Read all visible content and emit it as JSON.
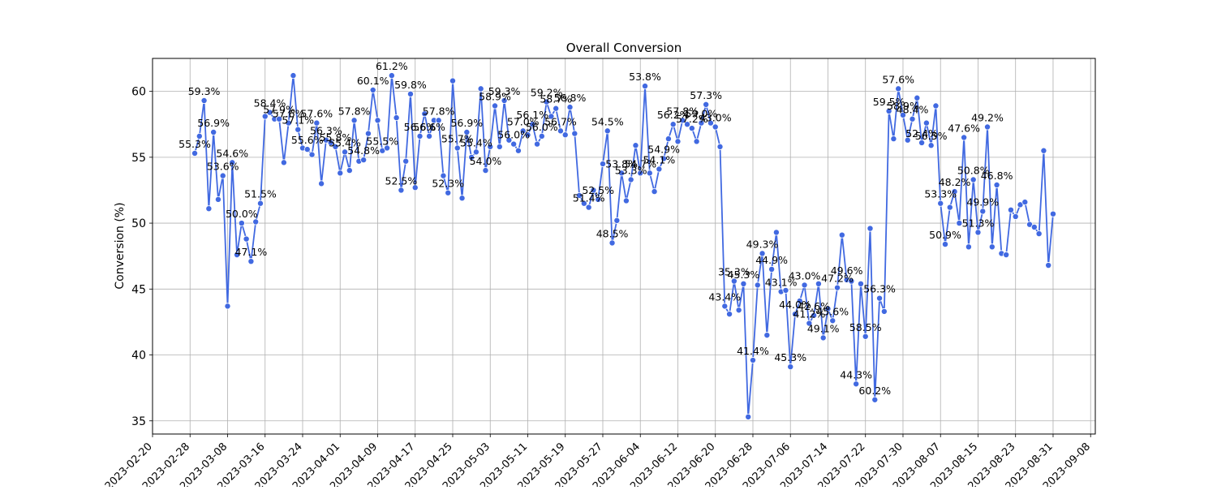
{
  "chart_data": {
    "type": "line",
    "title": "Overall Conversion",
    "xlabel": "",
    "ylabel": "Conversion (%)",
    "start_date": "2023-03-01",
    "x_ticks": [
      "2023-02-20",
      "2023-02-28",
      "2023-03-08",
      "2023-03-16",
      "2023-03-24",
      "2023-04-01",
      "2023-04-09",
      "2023-04-17",
      "2023-04-25",
      "2023-05-03",
      "2023-05-11",
      "2023-05-19",
      "2023-05-27",
      "2023-06-04",
      "2023-06-12",
      "2023-06-20",
      "2023-06-28",
      "2023-07-06",
      "2023-07-14",
      "2023-07-22",
      "2023-07-30",
      "2023-08-07",
      "2023-08-15",
      "2023-08-23",
      "2023-08-31",
      "2023-09-08"
    ],
    "y_ticks": [
      35,
      40,
      45,
      50,
      55,
      60
    ],
    "ylim": [
      34.0,
      62.5
    ],
    "grid": true,
    "series": [
      {
        "name": "",
        "color": "#4169e1",
        "values": [
          55.3,
          56.6,
          59.3,
          51.1,
          56.9,
          51.8,
          53.6,
          43.7,
          54.6,
          47.6,
          50.0,
          48.8,
          47.1,
          50.1,
          51.5,
          58.1,
          58.4,
          57.9,
          57.9,
          54.6,
          57.6,
          61.2,
          57.1,
          55.7,
          55.6,
          55.2,
          57.6,
          53.0,
          56.3,
          56.1,
          55.8,
          53.8,
          55.4,
          54.0,
          57.8,
          54.7,
          54.8,
          56.8,
          60.1,
          57.8,
          55.5,
          55.7,
          61.2,
          58.0,
          52.5,
          54.7,
          59.8,
          52.7,
          56.6,
          58.3,
          56.6,
          57.8,
          57.8,
          53.6,
          52.3,
          60.8,
          55.7,
          51.9,
          56.9,
          55.0,
          55.4,
          60.2,
          54.0,
          55.8,
          58.9,
          55.8,
          59.3,
          56.3,
          56.0,
          55.5,
          57.0,
          56.7,
          57.5,
          56.0,
          56.6,
          59.2,
          58.1,
          58.7,
          57.0,
          56.7,
          58.8,
          56.8,
          52.1,
          51.5,
          51.2,
          52.5,
          51.8,
          54.5,
          57.0,
          48.5,
          50.2,
          53.8,
          51.7,
          53.3,
          55.9,
          53.8,
          60.4,
          53.8,
          52.4,
          54.1,
          54.9,
          56.4,
          57.5,
          56.2,
          57.8,
          57.5,
          57.2,
          56.2,
          57.6,
          59.0,
          57.6,
          57.3,
          55.8,
          43.7,
          43.1,
          45.6,
          43.4,
          45.4,
          35.3,
          39.6,
          45.3,
          47.7,
          41.5,
          46.5,
          49.3,
          44.8,
          44.9,
          39.1,
          43.1,
          44.1,
          45.3,
          42.4,
          43.0,
          45.4,
          41.3,
          43.5,
          42.6,
          45.1,
          49.1,
          45.7,
          45.6,
          37.8,
          45.4,
          41.4,
          49.6,
          36.6,
          44.3,
          43.3,
          58.5,
          56.4,
          60.2,
          58.2,
          56.3,
          57.9,
          59.5,
          56.1,
          57.6,
          55.9,
          58.9,
          51.5,
          48.4,
          51.2,
          52.4,
          50.0,
          56.5,
          48.2,
          53.3,
          49.3,
          50.9,
          57.3,
          48.2,
          52.9,
          47.7,
          47.6,
          51.0,
          50.5,
          51.4,
          51.6,
          49.9,
          49.7,
          49.2,
          55.5,
          46.8,
          50.7
        ]
      }
    ],
    "annotations": [
      {
        "day": 0,
        "text": "55.3%"
      },
      {
        "day": 2,
        "text": "59.3%"
      },
      {
        "day": 4,
        "text": "56.9%"
      },
      {
        "day": 6,
        "text": "53.6%"
      },
      {
        "day": 8,
        "text": "54.6%"
      },
      {
        "day": 10,
        "text": "50.0%"
      },
      {
        "day": 12,
        "text": "47.1%"
      },
      {
        "day": 14,
        "text": "51.5%"
      },
      {
        "day": 16,
        "text": "58.4%"
      },
      {
        "day": 18,
        "text": "57.9%"
      },
      {
        "day": 20,
        "text": "57.6%"
      },
      {
        "day": 22,
        "text": "57.1%"
      },
      {
        "day": 24,
        "text": "55.6%"
      },
      {
        "day": 26,
        "text": "57.6%"
      },
      {
        "day": 28,
        "text": "56.3%"
      },
      {
        "day": 30,
        "text": "55.8%"
      },
      {
        "day": 32,
        "text": "55.4%"
      },
      {
        "day": 34,
        "text": "57.8%"
      },
      {
        "day": 36,
        "text": "54.8%"
      },
      {
        "day": 38,
        "text": "60.1%"
      },
      {
        "day": 40,
        "text": "55.5%"
      },
      {
        "day": 42,
        "text": "61.2%"
      },
      {
        "day": 44,
        "text": "52.5%"
      },
      {
        "day": 46,
        "text": "59.8%"
      },
      {
        "day": 48,
        "text": "56.6%"
      },
      {
        "day": 50,
        "text": "56.6%"
      },
      {
        "day": 52,
        "text": "57.8%"
      },
      {
        "day": 54,
        "text": "52.3%"
      },
      {
        "day": 56,
        "text": "55.7%"
      },
      {
        "day": 58,
        "text": "56.9%"
      },
      {
        "day": 60,
        "text": "55.4%"
      },
      {
        "day": 62,
        "text": "54.0%"
      },
      {
        "day": 64,
        "text": "58.9%"
      },
      {
        "day": 66,
        "text": "59.3%"
      },
      {
        "day": 68,
        "text": "56.0%"
      },
      {
        "day": 70,
        "text": "57.0%"
      },
      {
        "day": 72,
        "text": "56.1%"
      },
      {
        "day": 74,
        "text": "56.0%"
      },
      {
        "day": 75,
        "text": "59.2%"
      },
      {
        "day": 77,
        "text": "58.7%"
      },
      {
        "day": 78,
        "text": "56.7%"
      },
      {
        "day": 80,
        "text": "56.8%"
      },
      {
        "day": 84,
        "text": "51.4%"
      },
      {
        "day": 86,
        "text": "52.5%"
      },
      {
        "day": 88,
        "text": "54.5%"
      },
      {
        "day": 89,
        "text": "48.5%"
      },
      {
        "day": 91,
        "text": "53.8%"
      },
      {
        "day": 93,
        "text": "53.3%"
      },
      {
        "day": 95,
        "text": "54.7%"
      },
      {
        "day": 96,
        "text": "53.8%"
      },
      {
        "day": 99,
        "text": "54.1%"
      },
      {
        "day": 100,
        "text": "54.9%"
      },
      {
        "day": 102,
        "text": "56.2%"
      },
      {
        "day": 104,
        "text": "57.8%"
      },
      {
        "day": 106,
        "text": "57.2%"
      },
      {
        "day": 108,
        "text": "59.0%"
      },
      {
        "day": 109,
        "text": "57.3%"
      },
      {
        "day": 111,
        "text": "43.0%"
      },
      {
        "day": 113,
        "text": "43.4%"
      },
      {
        "day": 115,
        "text": "35.3%"
      },
      {
        "day": 117,
        "text": "45.3%"
      },
      {
        "day": 119,
        "text": "41.4%"
      },
      {
        "day": 121,
        "text": "49.3%"
      },
      {
        "day": 123,
        "text": "44.9%"
      },
      {
        "day": 125,
        "text": "43.1%"
      },
      {
        "day": 127,
        "text": "45.3%"
      },
      {
        "day": 128,
        "text": "44.0%"
      },
      {
        "day": 130,
        "text": "43.0%"
      },
      {
        "day": 131,
        "text": "41.2%"
      },
      {
        "day": 132,
        "text": "42.6%"
      },
      {
        "day": 134,
        "text": "49.1%"
      },
      {
        "day": 136,
        "text": "45.6%"
      },
      {
        "day": 137,
        "text": "47.2%"
      },
      {
        "day": 139,
        "text": "49.6%"
      },
      {
        "day": 141,
        "text": "44.3%"
      },
      {
        "day": 143,
        "text": "58.5%"
      },
      {
        "day": 145,
        "text": "60.2%"
      },
      {
        "day": 146,
        "text": "56.3%"
      },
      {
        "day": 148,
        "text": "59.5%"
      },
      {
        "day": 150,
        "text": "57.6%"
      },
      {
        "day": 151,
        "text": "58.9%"
      },
      {
        "day": 153,
        "text": "48.4%"
      },
      {
        "day": 155,
        "text": "52.4%"
      },
      {
        "day": 157,
        "text": "56.5%"
      },
      {
        "day": 159,
        "text": "53.3%"
      },
      {
        "day": 160,
        "text": "50.9%"
      },
      {
        "day": 162,
        "text": "48.2%"
      },
      {
        "day": 164,
        "text": "47.6%"
      },
      {
        "day": 166,
        "text": "50.8%"
      },
      {
        "day": 167,
        "text": "51.3%"
      },
      {
        "day": 168,
        "text": "49.9%"
      },
      {
        "day": 169,
        "text": "49.2%"
      },
      {
        "day": 171,
        "text": "46.8%"
      }
    ]
  }
}
